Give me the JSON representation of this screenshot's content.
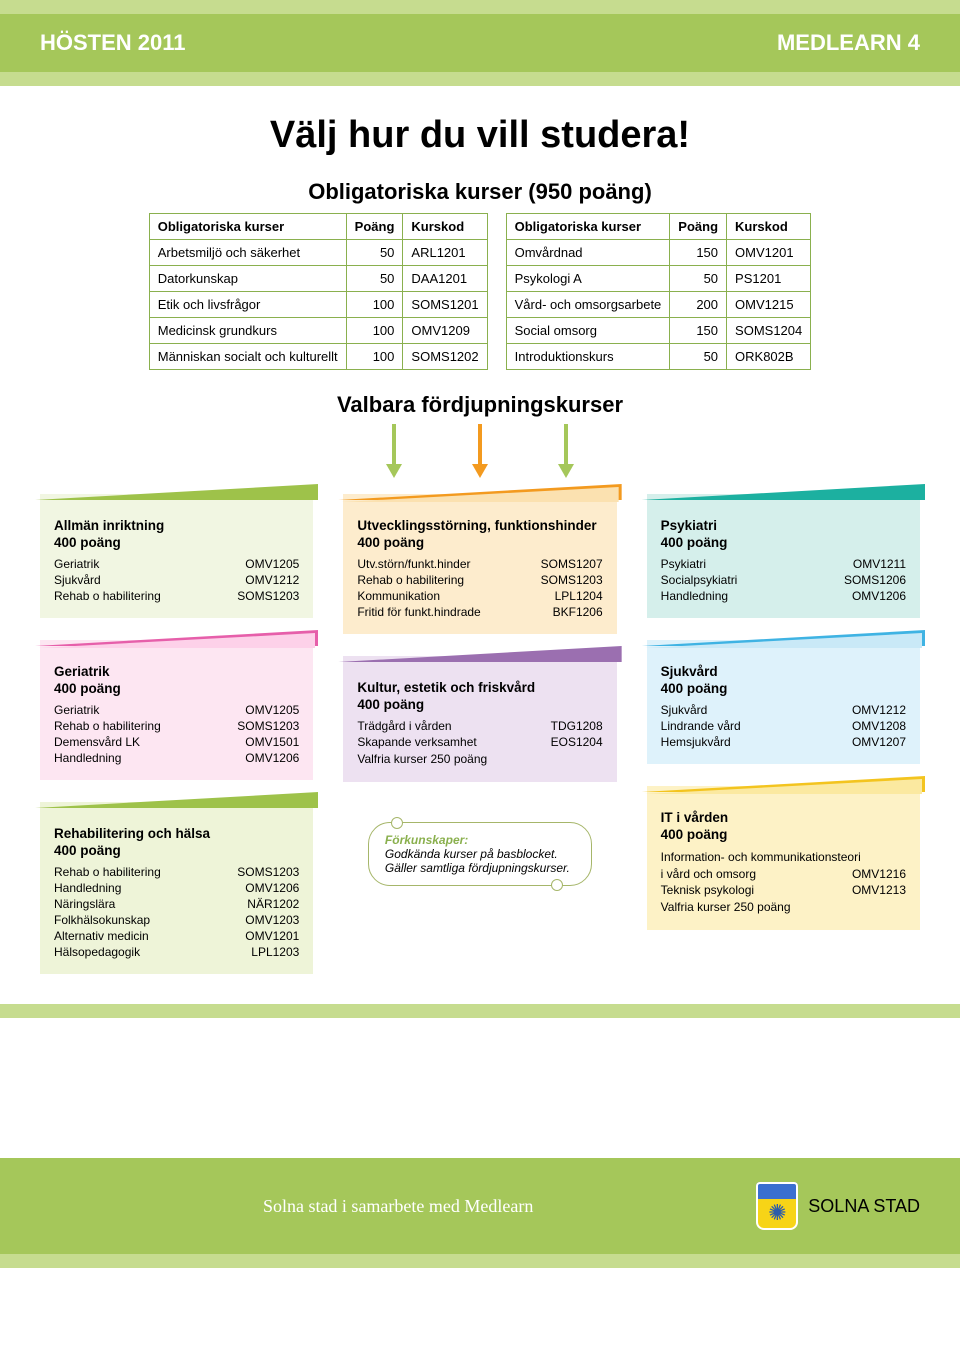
{
  "colors": {
    "green": "#a5c75a",
    "green_dark": "#8ab04e",
    "green_accent": "#c6dc8f",
    "paleGreen": "#f1f6e2",
    "pink_wedge": "#e65faa",
    "pink_accent": "#fdd1e9",
    "pink_bg": "#fde6f2",
    "lime_wedge": "#9ec24a",
    "lime_bg": "#eef4d8",
    "orange_wedge": "#f39a1f",
    "orange_accent": "#fbe1b0",
    "orange_bg": "#fdeccd",
    "purple_wedge": "#9b6fb0",
    "purple_bg": "#ede1f1",
    "teal_wedge": "#1cb0a0",
    "teal_bg": "#d5efeb",
    "blue_wedge": "#3fb3e3",
    "blue_accent": "#c9e9f7",
    "blue_bg": "#def2fb",
    "yellow_wedge": "#f3c41f",
    "yellow_accent": "#fbe9a0",
    "yellow_bg": "#fdf2c6",
    "text": "#000000",
    "white": "#ffffff"
  },
  "header": {
    "left": "HÖSTEN 2011",
    "right": "MEDLEARN 4"
  },
  "title": "Välj hur du vill studera!",
  "oblig_title": "Obligatoriska kurser (950 poäng)",
  "table_headers": {
    "course": "Obligatoriska kurser",
    "points": "Poäng",
    "code": "Kurskod"
  },
  "table1": [
    {
      "name": "Arbetsmiljö och säkerhet",
      "pts": 50,
      "code": "ARL1201"
    },
    {
      "name": "Datorkunskap",
      "pts": 50,
      "code": "DAA1201"
    },
    {
      "name": "Etik och livsfrågor",
      "pts": 100,
      "code": "SOMS1201"
    },
    {
      "name": "Medicinsk grundkurs",
      "pts": 100,
      "code": "OMV1209"
    },
    {
      "name": "Människan socialt och kulturellt",
      "pts": 100,
      "code": "SOMS1202"
    }
  ],
  "table2": [
    {
      "name": "Omvårdnad",
      "pts": 150,
      "code": "OMV1201"
    },
    {
      "name": "Psykologi A",
      "pts": 50,
      "code": "PS1201"
    },
    {
      "name": "Vård- och omsorgsarbete",
      "pts": 200,
      "code": "OMV1215"
    },
    {
      "name": "Social omsorg",
      "pts": 150,
      "code": "SOMS1204"
    },
    {
      "name": "Introduktionskurs",
      "pts": 50,
      "code": "ORK802B"
    }
  ],
  "valbara_title": "Valbara fördjupningskurser",
  "cards": {
    "allman": {
      "title": "Allmän inriktning",
      "pts": "400 poäng",
      "rows": [
        {
          "n": "Geriatrik",
          "c": "OMV1205"
        },
        {
          "n": "Sjukvård",
          "c": "OMV1212"
        },
        {
          "n": "Rehab o habilitering",
          "c": "SOMS1203"
        }
      ]
    },
    "geriatrik": {
      "title": "Geriatrik",
      "pts": "400 poäng",
      "rows": [
        {
          "n": "Geriatrik",
          "c": "OMV1205"
        },
        {
          "n": "Rehab o habilitering",
          "c": "SOMS1203"
        },
        {
          "n": "Demensvård LK",
          "c": "OMV1501"
        },
        {
          "n": "Handledning",
          "c": "OMV1206"
        }
      ]
    },
    "rehab": {
      "title": "Rehabilitering och hälsa",
      "pts": "400 poäng",
      "rows": [
        {
          "n": "Rehab o habilitering",
          "c": "SOMS1203"
        },
        {
          "n": "Handledning",
          "c": "OMV1206"
        },
        {
          "n": "Näringslära",
          "c": "NÄR1202"
        },
        {
          "n": "Folkhälsokunskap",
          "c": "OMV1203"
        },
        {
          "n": "Alternativ medicin",
          "c": "OMV1201"
        },
        {
          "n": "Hälsopedagogik",
          "c": "LPL1203"
        }
      ]
    },
    "utveckling": {
      "title": "Utvecklingsstörning, funktionshinder",
      "pts": "400 poäng",
      "rows": [
        {
          "n": "Utv.störn/funkt.hinder",
          "c": "SOMS1207"
        },
        {
          "n": "Rehab o habilitering",
          "c": "SOMS1203"
        },
        {
          "n": "Kommunikation",
          "c": "LPL1204"
        },
        {
          "n": "Fritid för funkt.hindrade",
          "c": "BKF1206"
        }
      ]
    },
    "kultur": {
      "title": "Kultur, estetik och friskvård",
      "pts": "400 poäng",
      "rows": [
        {
          "n": "Trädgård i vården",
          "c": "TDG1208"
        },
        {
          "n": "Skapande verksamhet",
          "c": "EOS1204"
        }
      ],
      "note": "Valfria kurser 250 poäng"
    },
    "psykiatri": {
      "title": "Psykiatri",
      "pts": "400 poäng",
      "rows": [
        {
          "n": "Psykiatri",
          "c": "OMV1211"
        },
        {
          "n": "Socialpsykiatri",
          "c": "SOMS1206"
        },
        {
          "n": "Handledning",
          "c": "OMV1206"
        }
      ]
    },
    "sjukvard": {
      "title": "Sjukvård",
      "pts": "400 poäng",
      "rows": [
        {
          "n": "Sjukvård",
          "c": "OMV1212"
        },
        {
          "n": "Lindrande vård",
          "c": "OMV1208"
        },
        {
          "n": "Hemsjukvård",
          "c": "OMV1207"
        }
      ]
    },
    "it": {
      "title": "IT i vården",
      "pts": "400 poäng",
      "intro": "Information- och kommunikationsteori",
      "rows": [
        {
          "n": "i vård och omsorg",
          "c": "OMV1216"
        },
        {
          "n": "Teknisk psykologi",
          "c": "OMV1213"
        }
      ],
      "note": "Valfria kurser 250 poäng"
    }
  },
  "prereq": {
    "title": "Förkunskaper:",
    "body": "Godkända kurser på bas­blocket. Gäller samtliga fördjupningskurser."
  },
  "footer": {
    "left": "Solna stad i samarbete med Medlearn",
    "brand": "SOLNA STAD"
  }
}
